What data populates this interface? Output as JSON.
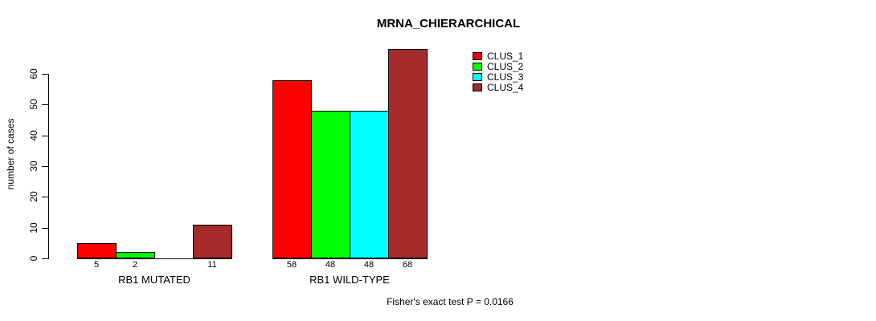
{
  "title": "MRNA_CHIERARCHICAL",
  "footer": "Fisher's exact test P = 0.0166",
  "legend": [
    {
      "label": "CLUS_1",
      "color": "#FF0000"
    },
    {
      "label": "CLUS_2",
      "color": "#00FF00"
    },
    {
      "label": "CLUS_3",
      "color": "#00FFFF"
    },
    {
      "label": "CLUS_4",
      "color": "#A52A2A"
    }
  ],
  "chart_data": {
    "type": "bar",
    "title": "MRNA_CHIERARCHICAL",
    "ylabel": "number of cases",
    "xlabel": "",
    "categories": [
      "RB1 MUTATED",
      "RB1 WILD-TYPE"
    ],
    "series": [
      {
        "name": "CLUS_1",
        "color": "#FF0000",
        "values": [
          5,
          58
        ]
      },
      {
        "name": "CLUS_2",
        "color": "#00FF00",
        "values": [
          2,
          48
        ]
      },
      {
        "name": "CLUS_3",
        "color": "#00FFFF",
        "values": [
          0,
          48
        ]
      },
      {
        "name": "CLUS_4",
        "color": "#A52A2A",
        "values": [
          11,
          68
        ]
      }
    ],
    "bar_value_labels": [
      [
        "5",
        "2",
        "",
        "11"
      ],
      [
        "58",
        "48",
        "48",
        "68"
      ]
    ],
    "yticks": [
      0,
      10,
      20,
      30,
      40,
      50,
      60
    ],
    "ylim": [
      0,
      60
    ],
    "grid": false,
    "legend_position": "inside-top-right",
    "annotation": "Fisher's exact test P = 0.0166"
  }
}
